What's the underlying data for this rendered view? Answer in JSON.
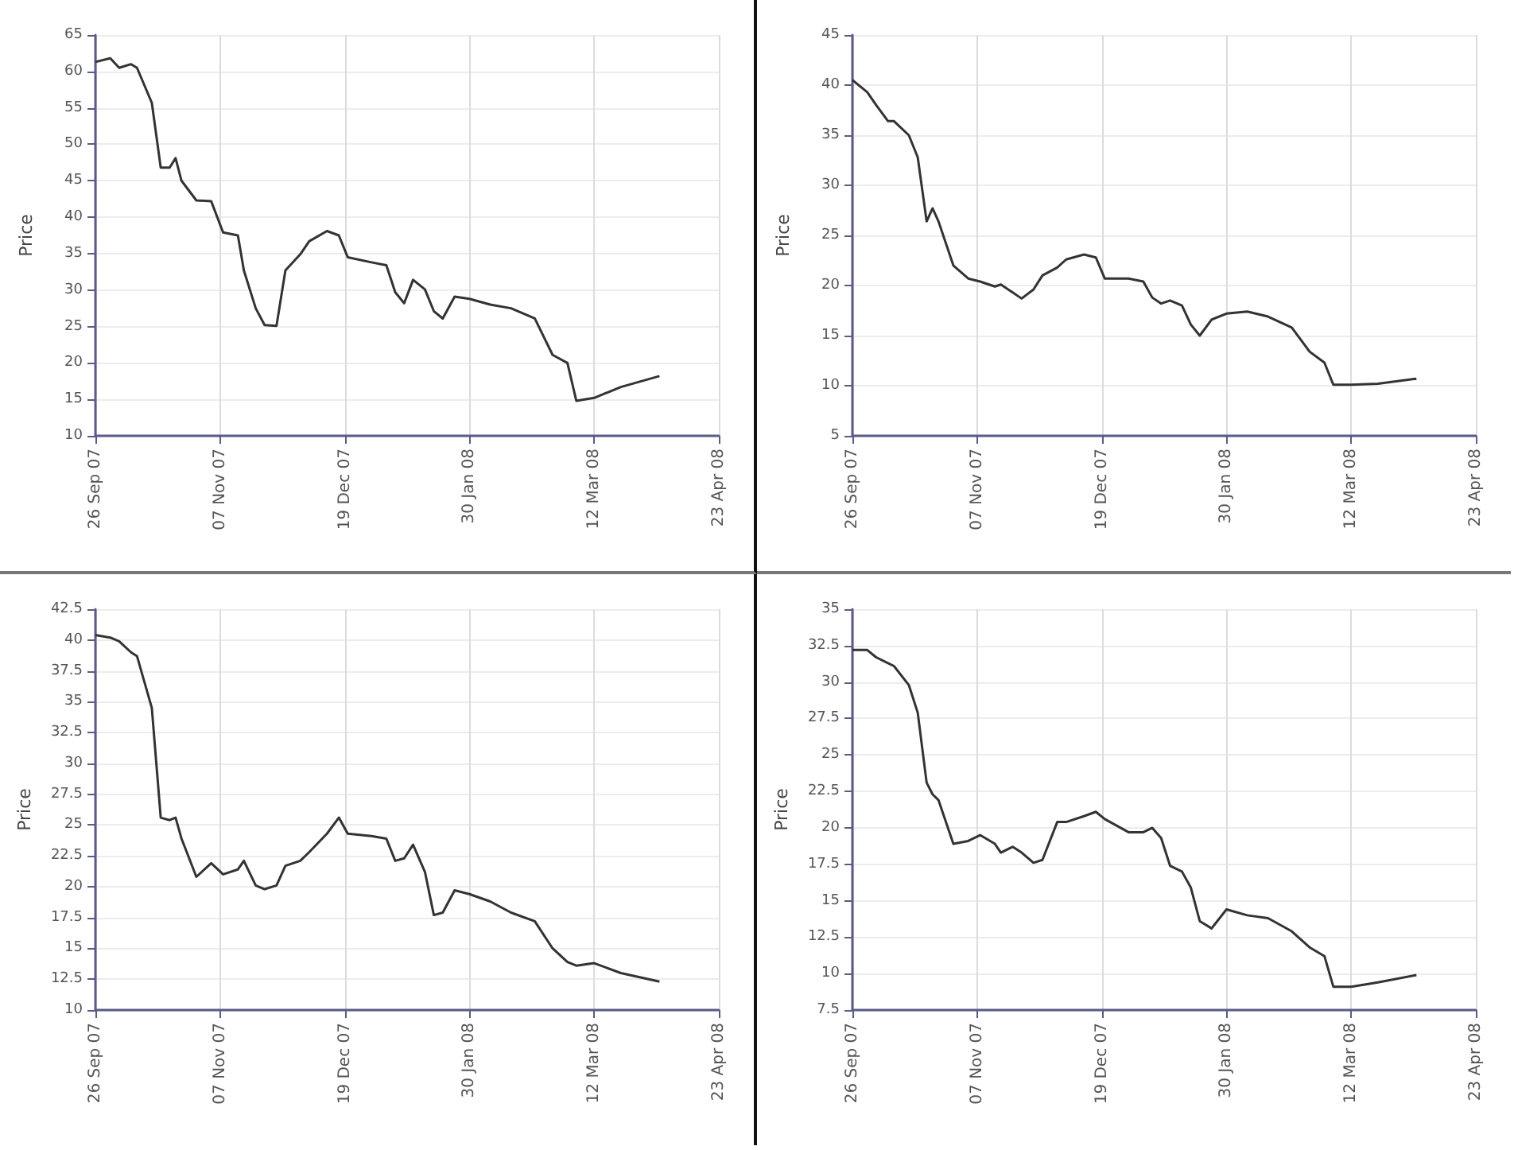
{
  "chart_data": [
    {
      "type": "line",
      "ylabel": "Price",
      "color": "#333333",
      "grid": true,
      "x": [
        "2007-09-26",
        "2007-10-01",
        "2007-10-04",
        "2007-10-08",
        "2007-10-10",
        "2007-10-15",
        "2007-10-18",
        "2007-10-21",
        "2007-10-23",
        "2007-10-25",
        "2007-10-30",
        "2007-11-04",
        "2007-11-08",
        "2007-11-13",
        "2007-11-15",
        "2007-11-19",
        "2007-11-22",
        "2007-11-26",
        "2007-11-29",
        "2007-12-04",
        "2007-12-07",
        "2007-12-13",
        "2007-12-17",
        "2007-12-20",
        "2007-12-28",
        "2008-01-02",
        "2008-01-05",
        "2008-01-08",
        "2008-01-11",
        "2008-01-15",
        "2008-01-18",
        "2008-01-21",
        "2008-01-25",
        "2008-01-30",
        "2008-02-06",
        "2008-02-13",
        "2008-02-21",
        "2008-02-27",
        "2008-03-03",
        "2008-03-06",
        "2008-03-12",
        "2008-03-21",
        "2008-04-03"
      ],
      "values": [
        61.3,
        61.8,
        60.5,
        61,
        60.5,
        55.7,
        46.8,
        46.8,
        48.1,
        45,
        42.3,
        42.2,
        37.9,
        37.5,
        32.7,
        27.5,
        25.2,
        25.1,
        32.7,
        34.9,
        36.7,
        38.1,
        37.5,
        34.5,
        33.8,
        33.4,
        29.7,
        28.2,
        31.4,
        30.1,
        27.1,
        26.1,
        29.1,
        28.8,
        28,
        27.5,
        26.1,
        21.1,
        20,
        14.8,
        15.2,
        16.7,
        18.2
      ],
      "xlim": [
        "2007-09-26",
        "2008-04-23"
      ],
      "xticks": [
        {
          "value": "2007-09-26",
          "label": "26 Sep 07"
        },
        {
          "value": "2007-11-07",
          "label": "07 Nov 07"
        },
        {
          "value": "2007-12-19",
          "label": "19 Dec 07"
        },
        {
          "value": "2008-01-30",
          "label": "30 Jan 08"
        },
        {
          "value": "2008-03-12",
          "label": "12 Mar 08"
        },
        {
          "value": "2008-04-23",
          "label": "23 Apr 08"
        }
      ],
      "ylim": [
        10,
        65
      ],
      "yticks": [
        10,
        15,
        20,
        25,
        30,
        35,
        40,
        45,
        50,
        55,
        60,
        65
      ]
    },
    {
      "type": "line",
      "ylabel": "Price",
      "color": "#333333",
      "grid": true,
      "x": [
        "2007-09-26",
        "2007-10-01",
        "2007-10-04",
        "2007-10-08",
        "2007-10-10",
        "2007-10-15",
        "2007-10-18",
        "2007-10-21",
        "2007-10-23",
        "2007-10-25",
        "2007-10-30",
        "2007-11-04",
        "2007-11-08",
        "2007-11-13",
        "2007-11-15",
        "2007-11-19",
        "2007-11-22",
        "2007-11-26",
        "2007-11-29",
        "2007-12-04",
        "2007-12-07",
        "2007-12-13",
        "2007-12-17",
        "2007-12-20",
        "2007-12-28",
        "2008-01-02",
        "2008-01-05",
        "2008-01-08",
        "2008-01-11",
        "2008-01-15",
        "2008-01-18",
        "2008-01-21",
        "2008-01-25",
        "2008-01-30",
        "2008-02-06",
        "2008-02-13",
        "2008-02-21",
        "2008-02-27",
        "2008-03-03",
        "2008-03-06",
        "2008-03-12",
        "2008-03-21",
        "2008-04-03"
      ],
      "values": [
        40.5,
        39.3,
        38,
        36.4,
        36.4,
        35,
        32.8,
        26.4,
        27.7,
        26.4,
        22,
        20.7,
        20.4,
        19.9,
        20.1,
        19.3,
        18.7,
        19.6,
        21,
        21.8,
        22.6,
        23.1,
        22.8,
        20.7,
        20.7,
        20.4,
        18.8,
        18.2,
        18.5,
        18,
        16.1,
        15,
        16.6,
        17.2,
        17.4,
        16.9,
        15.8,
        13.4,
        12.3,
        10.1,
        10.1,
        10.2,
        10.7
      ],
      "xlim": [
        "2007-09-26",
        "2008-04-23"
      ],
      "xticks": [
        {
          "value": "2007-09-26",
          "label": "26 Sep 07"
        },
        {
          "value": "2007-11-07",
          "label": "07 Nov 07"
        },
        {
          "value": "2007-12-19",
          "label": "19 Dec 07"
        },
        {
          "value": "2008-01-30",
          "label": "30 Jan 08"
        },
        {
          "value": "2008-03-12",
          "label": "12 Mar 08"
        },
        {
          "value": "2008-04-23",
          "label": "23 Apr 08"
        }
      ],
      "ylim": [
        5,
        45
      ],
      "yticks": [
        5,
        10,
        15,
        20,
        25,
        30,
        35,
        40,
        45
      ]
    },
    {
      "type": "line",
      "ylabel": "Price",
      "color": "#333333",
      "grid": true,
      "x": [
        "2007-09-26",
        "2007-10-01",
        "2007-10-04",
        "2007-10-08",
        "2007-10-10",
        "2007-10-15",
        "2007-10-18",
        "2007-10-21",
        "2007-10-23",
        "2007-10-25",
        "2007-10-30",
        "2007-11-04",
        "2007-11-08",
        "2007-11-13",
        "2007-11-15",
        "2007-11-19",
        "2007-11-22",
        "2007-11-26",
        "2007-11-29",
        "2007-12-04",
        "2007-12-07",
        "2007-12-13",
        "2007-12-17",
        "2007-12-20",
        "2007-12-28",
        "2008-01-02",
        "2008-01-05",
        "2008-01-08",
        "2008-01-11",
        "2008-01-15",
        "2008-01-18",
        "2008-01-21",
        "2008-01-25",
        "2008-01-30",
        "2008-02-06",
        "2008-02-13",
        "2008-02-21",
        "2008-02-27",
        "2008-03-03",
        "2008-03-06",
        "2008-03-12",
        "2008-03-21",
        "2008-04-03"
      ],
      "values": [
        40.4,
        40.2,
        39.9,
        39,
        38.7,
        34.5,
        25.6,
        25.4,
        25.6,
        23.9,
        20.8,
        21.9,
        21,
        21.4,
        22.1,
        20.1,
        19.8,
        20.1,
        21.7,
        22.1,
        22.8,
        24.3,
        25.6,
        24.3,
        24.1,
        23.9,
        22.1,
        22.3,
        23.4,
        21.2,
        17.7,
        17.9,
        19.7,
        19.4,
        18.8,
        17.9,
        17.2,
        15,
        13.9,
        13.6,
        13.8,
        13,
        12.3
      ],
      "xlim": [
        "2007-09-26",
        "2008-04-23"
      ],
      "xticks": [
        {
          "value": "2007-09-26",
          "label": "26 Sep 07"
        },
        {
          "value": "2007-11-07",
          "label": "07 Nov 07"
        },
        {
          "value": "2007-12-19",
          "label": "19 Dec 07"
        },
        {
          "value": "2008-01-30",
          "label": "30 Jan 08"
        },
        {
          "value": "2008-03-12",
          "label": "12 Mar 08"
        },
        {
          "value": "2008-04-23",
          "label": "23 Apr 08"
        }
      ],
      "ylim": [
        10,
        42.5
      ],
      "yticks": [
        10,
        12.5,
        15,
        17.5,
        20,
        22.5,
        25,
        27.5,
        30,
        32.5,
        35,
        37.5,
        40,
        42.5
      ]
    },
    {
      "type": "line",
      "ylabel": "Price",
      "color": "#333333",
      "grid": true,
      "x": [
        "2007-09-26",
        "2007-10-01",
        "2007-10-04",
        "2007-10-08",
        "2007-10-10",
        "2007-10-15",
        "2007-10-18",
        "2007-10-21",
        "2007-10-23",
        "2007-10-25",
        "2007-10-30",
        "2007-11-04",
        "2007-11-08",
        "2007-11-13",
        "2007-11-15",
        "2007-11-19",
        "2007-11-22",
        "2007-11-26",
        "2007-11-29",
        "2007-12-04",
        "2007-12-07",
        "2007-12-13",
        "2007-12-17",
        "2007-12-20",
        "2007-12-28",
        "2008-01-02",
        "2008-01-05",
        "2008-01-08",
        "2008-01-11",
        "2008-01-15",
        "2008-01-18",
        "2008-01-21",
        "2008-01-25",
        "2008-01-30",
        "2008-02-06",
        "2008-02-13",
        "2008-02-21",
        "2008-02-27",
        "2008-03-03",
        "2008-03-06",
        "2008-03-12",
        "2008-03-21",
        "2008-04-03"
      ],
      "values": [
        32.2,
        32.2,
        31.7,
        31.3,
        31.1,
        29.8,
        27.9,
        23.1,
        22.3,
        21.9,
        18.9,
        19.1,
        19.5,
        18.9,
        18.3,
        18.7,
        18.3,
        17.6,
        17.8,
        20.4,
        20.4,
        20.8,
        21.1,
        20.6,
        19.7,
        19.7,
        20,
        19.3,
        17.4,
        17,
        15.9,
        13.6,
        13.1,
        14.4,
        14,
        13.8,
        12.9,
        11.8,
        11.2,
        9.1,
        9.1,
        9.4,
        9.9
      ],
      "xlim": [
        "2007-09-26",
        "2008-04-23"
      ],
      "xticks": [
        {
          "value": "2007-09-26",
          "label": "26 Sep 07"
        },
        {
          "value": "2007-11-07",
          "label": "07 Nov 07"
        },
        {
          "value": "2007-12-19",
          "label": "19 Dec 07"
        },
        {
          "value": "2008-01-30",
          "label": "30 Jan 08"
        },
        {
          "value": "2008-03-12",
          "label": "12 Mar 08"
        },
        {
          "value": "2008-04-23",
          "label": "23 Apr 08"
        }
      ],
      "ylim": [
        7.5,
        35
      ],
      "yticks": [
        7.5,
        10,
        12.5,
        15,
        17.5,
        20,
        22.5,
        25,
        27.5,
        30,
        32.5,
        35
      ]
    }
  ]
}
